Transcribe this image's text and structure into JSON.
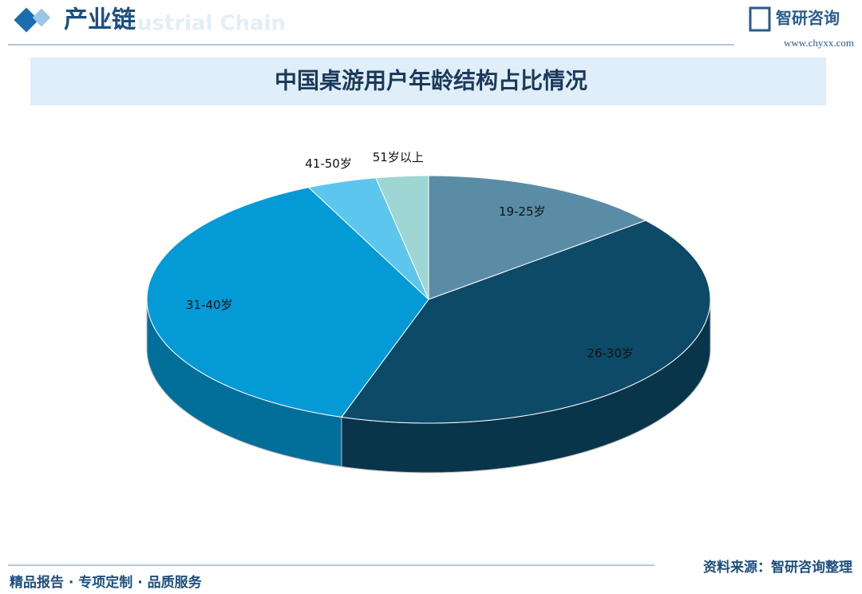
{
  "header": {
    "title": "产业链",
    "subtitle": "Industrial Chain",
    "brand": "智研咨询",
    "url": "www.chyxx.com"
  },
  "chart_data": {
    "type": "pie3d",
    "title": "中国桌游用户年龄结构占比情况",
    "categories": [
      "19-25岁",
      "26-30岁",
      "31-40岁",
      "41-50岁",
      "51岁以上"
    ],
    "values": [
      14,
      41,
      38,
      4,
      3
    ],
    "colors": [
      "#5a8ca6",
      "#0d4a68",
      "#039ad6",
      "#5cc6ef",
      "#9ed6d3"
    ]
  },
  "footer": {
    "left": "精品报告 · 专项定制 · 品质服务",
    "right": "资料来源：智研咨询整理"
  }
}
